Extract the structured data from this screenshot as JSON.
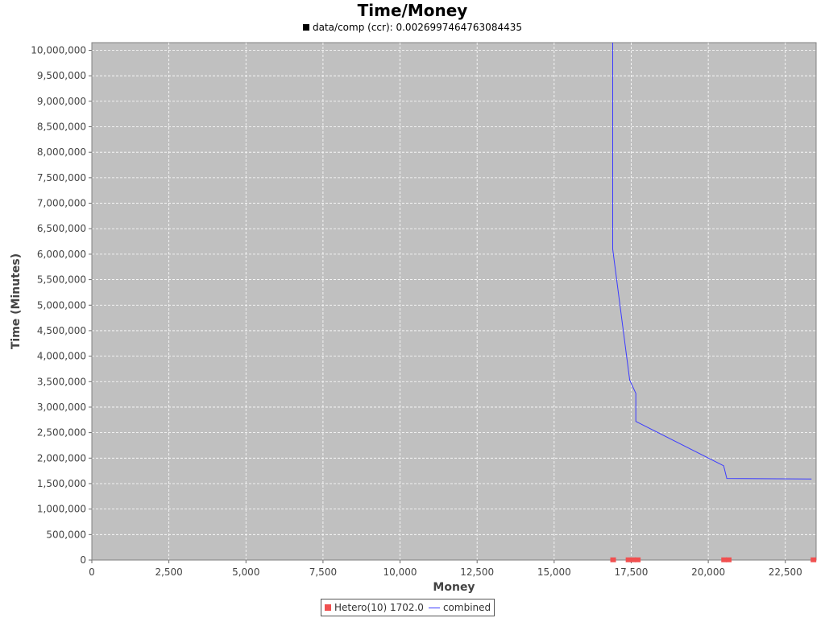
{
  "chart_data": {
    "type": "line",
    "title": "Time/Money",
    "subtitle": "data/comp (ccr): 0.0026997464763084435",
    "xlabel": "Money",
    "ylabel": "Time (Minutes)",
    "xlim": [
      0,
      23500
    ],
    "ylim": [
      0,
      10150000
    ],
    "x_ticks": [
      0,
      2500,
      5000,
      7500,
      10000,
      12500,
      15000,
      17500,
      20000,
      22500
    ],
    "x_tick_labels": [
      "0",
      "2,500",
      "5,000",
      "7,500",
      "10,000",
      "12,500",
      "15,000",
      "17,500",
      "20,000",
      "22,500"
    ],
    "y_ticks": [
      0,
      500000,
      1000000,
      1500000,
      2000000,
      2500000,
      3000000,
      3500000,
      4000000,
      4500000,
      5000000,
      5500000,
      6000000,
      6500000,
      7000000,
      7500000,
      8000000,
      8500000,
      9000000,
      9500000,
      10000000
    ],
    "y_tick_labels": [
      "0",
      "500,000",
      "1,000,000",
      "1,500,000",
      "2,000,000",
      "2,500,000",
      "3,000,000",
      "3,500,000",
      "4,000,000",
      "4,500,000",
      "5,000,000",
      "5,500,000",
      "6,000,000",
      "6,500,000",
      "7,000,000",
      "7,500,000",
      "8,000,000",
      "8,500,000",
      "9,000,000",
      "9,500,000",
      "10,000,000"
    ],
    "grid": true,
    "legend_position": "bottom",
    "series": [
      {
        "name": "Hetero(10) 1702.0",
        "type": "scatter",
        "color": "#f05050",
        "points": [
          [
            16900,
            5000
          ],
          [
            17400,
            5000
          ],
          [
            17550,
            5000
          ],
          [
            17700,
            5000
          ],
          [
            20500,
            5000
          ],
          [
            20650,
            5000
          ],
          [
            23400,
            5000
          ]
        ]
      },
      {
        "name": "combined",
        "type": "line",
        "color": "#3b3bff",
        "points": [
          [
            16900,
            10150000
          ],
          [
            16900,
            6100000
          ],
          [
            17450,
            3530000
          ],
          [
            17650,
            3270000
          ],
          [
            17650,
            2720000
          ],
          [
            20500,
            1850000
          ],
          [
            20600,
            1600000
          ],
          [
            23350,
            1590000
          ]
        ]
      }
    ]
  },
  "legend": {
    "entries": [
      "Hetero(10) 1702.0",
      "combined"
    ]
  }
}
